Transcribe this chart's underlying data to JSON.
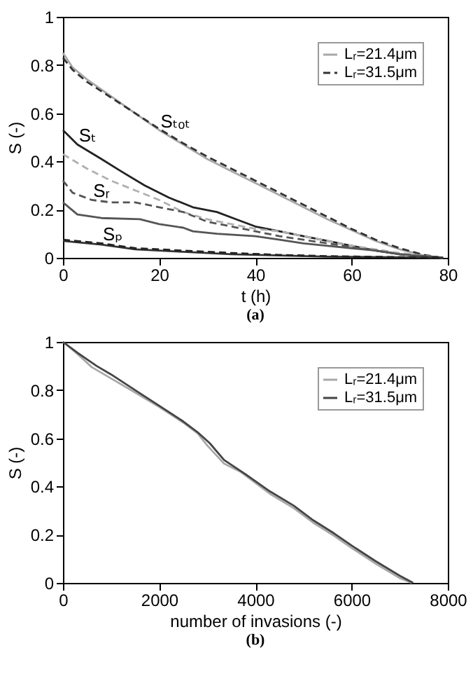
{
  "chart_data": [
    {
      "type": "line",
      "xlabel": "t (h)",
      "ylabel": "S (-)",
      "xlim": [
        0,
        80
      ],
      "xticks": [
        0,
        20,
        40,
        60,
        80
      ],
      "ylim": [
        0,
        1
      ],
      "yticks": [
        0,
        0.2,
        0.4,
        0.6,
        0.8,
        1
      ],
      "legend": "top right",
      "grid": false,
      "series": [
        {
          "name": "Lᵣ=21.4μm",
          "color": "#a8a8a8",
          "line_style": "solid",
          "x": [
            0,
            2,
            5,
            10,
            15,
            20,
            25,
            30,
            35,
            40,
            45,
            50,
            55,
            60,
            65,
            70,
            75,
            79
          ],
          "values": [
            0.85,
            0.79,
            0.74,
            0.67,
            0.6,
            0.53,
            0.47,
            0.41,
            0.36,
            0.31,
            0.26,
            0.21,
            0.16,
            0.115,
            0.07,
            0.035,
            0.01,
            0
          ]
        },
        {
          "name": "Lᵣ=31.5μm",
          "color": "#333333",
          "line_style": "dashed",
          "x": [
            0,
            2,
            5,
            10,
            15,
            20,
            25,
            30,
            35,
            40,
            45,
            50,
            55,
            60,
            65,
            70,
            75,
            79
          ],
          "values": [
            0.83,
            0.78,
            0.73,
            0.665,
            0.6,
            0.535,
            0.475,
            0.42,
            0.37,
            0.32,
            0.27,
            0.22,
            0.17,
            0.12,
            0.075,
            0.04,
            0.012,
            0
          ]
        },
        {
          "color": "#222222",
          "line_style": "solid",
          "x": [
            0,
            3,
            8,
            12,
            17,
            22,
            27,
            32,
            36,
            40,
            45,
            50,
            55,
            60,
            65,
            70,
            79
          ],
          "values": [
            0.53,
            0.47,
            0.41,
            0.36,
            0.3,
            0.25,
            0.21,
            0.19,
            0.16,
            0.13,
            0.11,
            0.09,
            0.07,
            0.05,
            0.03,
            0.015,
            0
          ]
        },
        {
          "color": "#b0b0b0",
          "line_style": "dashed",
          "x": [
            0,
            5,
            10,
            15,
            20,
            25,
            30,
            35,
            40,
            45,
            50,
            55,
            60,
            65,
            70,
            79
          ],
          "values": [
            0.43,
            0.37,
            0.32,
            0.28,
            0.24,
            0.19,
            0.16,
            0.14,
            0.12,
            0.11,
            0.09,
            0.07,
            0.05,
            0.035,
            0.02,
            0
          ]
        },
        {
          "color": "#555555",
          "line_style": "solid",
          "x": [
            0,
            3,
            8,
            16,
            20,
            25,
            27,
            32,
            40,
            45,
            50,
            55,
            60,
            65,
            70,
            79
          ],
          "values": [
            0.23,
            0.18,
            0.165,
            0.16,
            0.14,
            0.125,
            0.11,
            0.1,
            0.09,
            0.075,
            0.06,
            0.05,
            0.04,
            0.03,
            0.015,
            0
          ]
        },
        {
          "color": "#555555",
          "line_style": "dashed",
          "x": [
            0,
            2,
            6,
            10,
            15,
            20,
            25,
            30,
            35,
            40,
            45,
            50,
            55,
            60,
            65,
            70,
            79
          ],
          "values": [
            0.32,
            0.27,
            0.24,
            0.23,
            0.23,
            0.21,
            0.19,
            0.15,
            0.13,
            0.11,
            0.09,
            0.075,
            0.06,
            0.045,
            0.03,
            0.015,
            0
          ]
        },
        {
          "color": "#333333",
          "line_style": "solid",
          "x": [
            0,
            8,
            15,
            25,
            35,
            45,
            55,
            65,
            79
          ],
          "values": [
            0.07,
            0.055,
            0.035,
            0.025,
            0.015,
            0.01,
            0.005,
            0.003,
            0
          ]
        },
        {
          "color": "#222222",
          "line_style": "dashed",
          "x": [
            0,
            8,
            15,
            25,
            35,
            45,
            55,
            65,
            79
          ],
          "values": [
            0.075,
            0.06,
            0.04,
            0.03,
            0.02,
            0.012,
            0.007,
            0.004,
            0
          ]
        }
      ],
      "annotations": [
        {
          "text": "Sₜₒₜ",
          "x": 20,
          "y": 0.53
        },
        {
          "text": "Sₜ",
          "x": 3,
          "y": 0.47
        },
        {
          "text": "Sᵣ",
          "x": 6,
          "y": 0.24
        },
        {
          "text": "Sₚ",
          "x": 8,
          "y": 0.06
        },
        "(a)"
      ]
    },
    {
      "type": "line",
      "xlabel": "number of invasions (-)",
      "ylabel": "S (-)",
      "xlim": [
        0,
        8000
      ],
      "xticks": [
        0,
        2000,
        4000,
        6000,
        8000
      ],
      "ylim": [
        0,
        1
      ],
      "yticks": [
        0,
        0.2,
        0.4,
        0.6,
        0.8,
        1
      ],
      "legend": "top right",
      "grid": false,
      "series": [
        {
          "name": "Lᵣ=21.4μm",
          "color": "#a8a8a8",
          "line_style": "solid",
          "x": [
            0,
            300,
            600,
            900,
            1500,
            2000,
            2500,
            2800,
            3000,
            3350,
            3700,
            4300,
            4800,
            5200,
            5600,
            6000,
            6500,
            7000,
            7250
          ],
          "values": [
            1,
            0.95,
            0.895,
            0.86,
            0.79,
            0.73,
            0.665,
            0.62,
            0.57,
            0.495,
            0.46,
            0.37,
            0.31,
            0.25,
            0.2,
            0.145,
            0.08,
            0.02,
            0
          ]
        },
        {
          "name": "Lᵣ=31.5μm",
          "color": "#444444",
          "line_style": "solid",
          "x": [
            0,
            300,
            700,
            1000,
            1500,
            2000,
            2500,
            2800,
            3050,
            3350,
            3800,
            4300,
            4800,
            5200,
            5600,
            6000,
            6500,
            7000,
            7280
          ],
          "values": [
            1,
            0.955,
            0.9,
            0.865,
            0.8,
            0.735,
            0.67,
            0.625,
            0.58,
            0.51,
            0.45,
            0.38,
            0.32,
            0.26,
            0.21,
            0.155,
            0.09,
            0.03,
            0
          ]
        }
      ],
      "annotations": [
        "(b)"
      ]
    }
  ]
}
